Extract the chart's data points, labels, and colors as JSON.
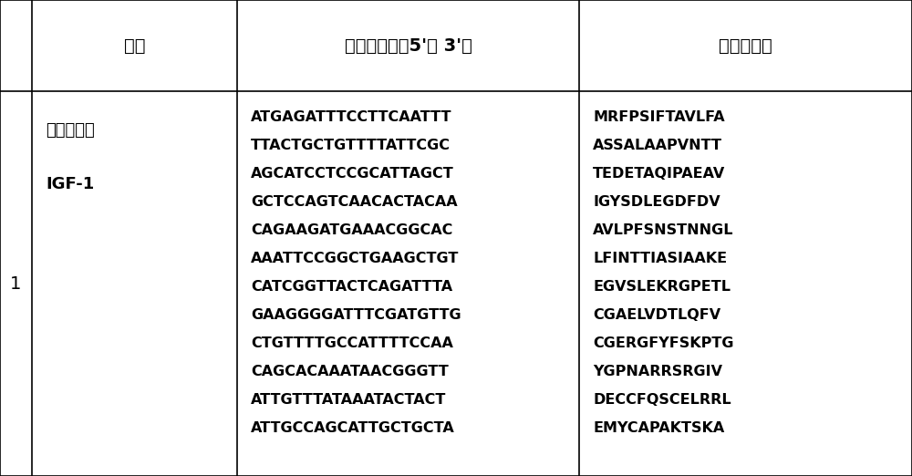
{
  "figsize": [
    10.0,
    5.22
  ],
  "dpi": 100,
  "background_color": "#ffffff",
  "header_cols": [
    "鉴别",
    "核苷酸序列（5'至 3'）",
    "氨基酸序列"
  ],
  "row_number": "1",
  "id_line1": "天然石斑鱼",
  "id_line2": "IGF-1",
  "nucleotide_lines": [
    "ATGAGATTTCCTTCAATTT",
    "TTACTGCTGTTTTATTCGC",
    "AGCATCCTCCGCATTAGCT",
    "GCTCCAGTCAACACTACAA",
    "CAGAAGATGAAACGGCAC",
    "AAATTCCGGCTGAAGCTGT",
    "CATCGGTTACTCAGATTTA",
    "GAAGGGGATTTCGATGTTG",
    "CTGTTTTGCCATTTTCCAA",
    "CAGCACAAATAACGGGTT",
    "ATTGTTTATAAATACTACT",
    "ATTGCCAGCATTGCTGCTA"
  ],
  "amino_acid_lines": [
    "MRFPSIFTAVLFA",
    "ASSALAAPVNTT",
    "TEDETAQIPAEAV",
    "IGYSDLEGDFDV",
    "AVLPFSNSTNNGL",
    "LFINTTIASIAAKE",
    "EGVSLEKRGPETL",
    "CGAELVDTLQFV",
    "CGERGFYFSKPTG",
    "YGPNARRSRGIV",
    "DECCFQSCELRRL",
    "EMYCAPAKTSKA"
  ],
  "line_color": "#000000",
  "text_color": "#000000",
  "border_lw": 1.2,
  "header_fontsize": 14,
  "cell_fontsize": 11.5,
  "id_fontsize": 13,
  "num_fontsize": 14
}
